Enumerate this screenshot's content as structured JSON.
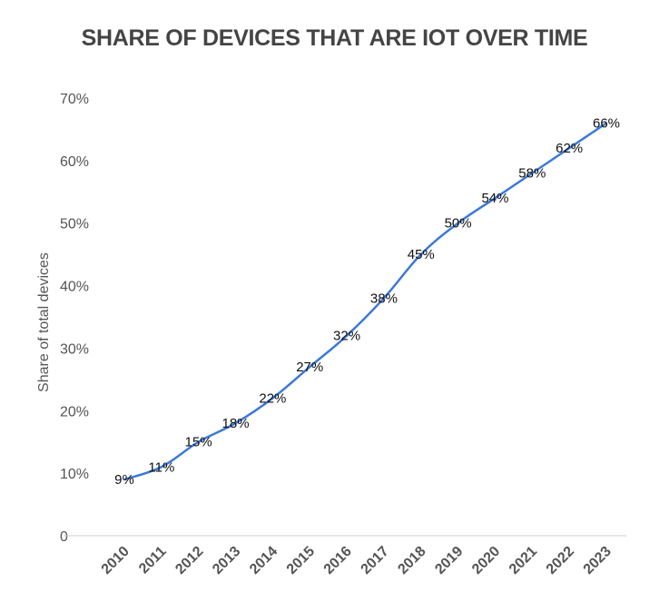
{
  "chart_data": {
    "type": "line",
    "title": "SHARE OF DEVICES THAT ARE IOT OVER TIME",
    "xlabel": "",
    "ylabel": "Share of total devices",
    "categories": [
      "2010",
      "2011",
      "2012",
      "2013",
      "2014",
      "2015",
      "2016",
      "2017",
      "2018",
      "2019",
      "2020",
      "2021",
      "2022",
      "2023"
    ],
    "series": [
      {
        "name": "Share of total devices",
        "values": [
          9,
          11,
          15,
          18,
          22,
          27,
          32,
          38,
          45,
          50,
          54,
          58,
          62,
          66
        ],
        "labels": [
          "9%",
          "11%",
          "15%",
          "18%",
          "22%",
          "27%",
          "32%",
          "38%",
          "45%",
          "50%",
          "54%",
          "58%",
          "62%",
          "66%"
        ],
        "color": "#3c78d8"
      }
    ],
    "ylim": [
      0,
      70
    ],
    "yticks": [
      0,
      10,
      20,
      30,
      40,
      50,
      60,
      70
    ],
    "ytick_labels": [
      "0",
      "10%",
      "20%",
      "30%",
      "40%",
      "50%",
      "60%",
      "70%"
    ],
    "grid": false,
    "legend": "none",
    "baseline_color": "#cccccc"
  }
}
